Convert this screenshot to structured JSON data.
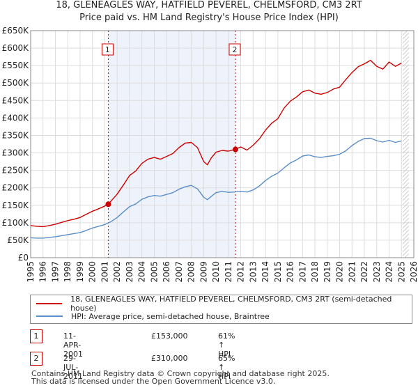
{
  "title_line1": "18, GLENEAGLES WAY, HATFIELD PEVEREL, CHELMSFORD, CM3 2RT",
  "title_line2": "Price paid vs. HM Land Registry's House Price Index (HPI)",
  "colors": {
    "property": "#cc0000",
    "hpi": "#5b8ec9",
    "grid": "#dddddd",
    "shade": "#eef2fa",
    "marker": "#cc0000"
  },
  "chart_data": {
    "type": "line",
    "title": "Price paid vs. HM Land Registry's House Price Index (HPI)",
    "xlabel": "",
    "ylabel": "",
    "xlim": [
      1995,
      2026
    ],
    "ylim": [
      0,
      650000
    ],
    "x_ticks": [
      1995,
      1996,
      1997,
      1998,
      1999,
      2000,
      2001,
      2002,
      2003,
      2004,
      2005,
      2006,
      2007,
      2008,
      2009,
      2010,
      2011,
      2012,
      2013,
      2014,
      2015,
      2016,
      2017,
      2018,
      2019,
      2020,
      2021,
      2022,
      2023,
      2024,
      2025,
      2026
    ],
    "y_ticks": [
      0,
      50000,
      100000,
      150000,
      200000,
      250000,
      300000,
      350000,
      400000,
      450000,
      500000,
      550000,
      600000,
      650000
    ],
    "y_tick_labels": [
      "£0",
      "£50K",
      "£100K",
      "£150K",
      "£200K",
      "£250K",
      "£300K",
      "£350K",
      "£400K",
      "£450K",
      "£500K",
      "£550K",
      "£600K",
      "£650K"
    ],
    "grid": true,
    "forecast_start": 2025.1,
    "series": [
      {
        "name": "18, GLENEAGLES WAY, HATFIELD PEVEREL, CHELMSFORD, CM3 2RT (semi-detached house)",
        "x": [
          1995,
          1995.5,
          1996,
          1996.5,
          1997,
          1997.5,
          1998,
          1998.5,
          1999,
          1999.5,
          2000,
          2000.5,
          2001,
          2001.28,
          2001.5,
          2002,
          2002.5,
          2003,
          2003.5,
          2004,
          2004.5,
          2005,
          2005.5,
          2006,
          2006.5,
          2007,
          2007.5,
          2008,
          2008.5,
          2009,
          2009.3,
          2009.6,
          2010,
          2010.5,
          2011,
          2011.57,
          2012,
          2012.5,
          2013,
          2013.5,
          2014,
          2014.5,
          2015,
          2015.5,
          2016,
          2016.5,
          2017,
          2017.5,
          2018,
          2018.5,
          2019,
          2019.5,
          2020,
          2020.5,
          2021,
          2021.5,
          2022,
          2022.5,
          2023,
          2023.5,
          2024,
          2024.5,
          2025
        ],
        "values": [
          92000,
          90000,
          89000,
          92000,
          96000,
          101000,
          106000,
          110000,
          115000,
          124000,
          133000,
          140000,
          148000,
          153000,
          162000,
          182000,
          208000,
          235000,
          248000,
          270000,
          282000,
          287000,
          282000,
          290000,
          298000,
          315000,
          328000,
          330000,
          315000,
          275000,
          266000,
          285000,
          302000,
          307000,
          305000,
          310000,
          317000,
          308000,
          322000,
          340000,
          365000,
          385000,
          398000,
          428000,
          448000,
          460000,
          475000,
          480000,
          471000,
          468000,
          473000,
          483000,
          488000,
          510000,
          530000,
          547000,
          555000,
          565000,
          548000,
          540000,
          560000,
          548000,
          557000
        ]
      },
      {
        "name": "HPI: Average price, semi-detached house, Braintree",
        "x": [
          1995,
          1995.5,
          1996,
          1996.5,
          1997,
          1997.5,
          1998,
          1998.5,
          1999,
          1999.5,
          2000,
          2000.5,
          2001,
          2001.5,
          2002,
          2002.5,
          2003,
          2003.5,
          2004,
          2004.5,
          2005,
          2005.5,
          2006,
          2006.5,
          2007,
          2007.5,
          2008,
          2008.5,
          2009,
          2009.3,
          2009.6,
          2010,
          2010.5,
          2011,
          2011.5,
          2012,
          2012.5,
          2013,
          2013.5,
          2014,
          2014.5,
          2015,
          2015.5,
          2016,
          2016.5,
          2017,
          2017.5,
          2018,
          2018.5,
          2019,
          2019.5,
          2020,
          2020.5,
          2021,
          2021.5,
          2022,
          2022.5,
          2023,
          2023.5,
          2024,
          2024.5,
          2025
        ],
        "values": [
          57000,
          56000,
          56000,
          58000,
          60000,
          63000,
          66000,
          69000,
          72000,
          78000,
          85000,
          90000,
          95000,
          103000,
          115000,
          131000,
          146000,
          154000,
          167000,
          174000,
          178000,
          176000,
          181000,
          186000,
          196000,
          203000,
          207000,
          197000,
          173000,
          166000,
          175000,
          186000,
          190000,
          187000,
          188000,
          190000,
          188000,
          194000,
          205000,
          221000,
          233000,
          242000,
          257000,
          271000,
          280000,
          291000,
          294000,
          289000,
          287000,
          290000,
          292000,
          296000,
          306000,
          321000,
          333000,
          341000,
          342000,
          335000,
          331000,
          336000,
          330000,
          334000
        ]
      }
    ],
    "transactions": [
      {
        "id": "1",
        "x": 2001.28,
        "value": 153000,
        "date": "11-APR-2001",
        "price": "£153,000",
        "hpi_change": "61% ↑ HPI"
      },
      {
        "id": "2",
        "x": 2011.57,
        "value": 310000,
        "date": "29-JUL-2011",
        "price": "£310,000",
        "hpi_change": "65% ↑ HPI"
      }
    ]
  },
  "footer_line1": "Contains HM Land Registry data © Crown copyright and database right 2025.",
  "footer_line2": "This data is licensed under the Open Government Licence v3.0."
}
